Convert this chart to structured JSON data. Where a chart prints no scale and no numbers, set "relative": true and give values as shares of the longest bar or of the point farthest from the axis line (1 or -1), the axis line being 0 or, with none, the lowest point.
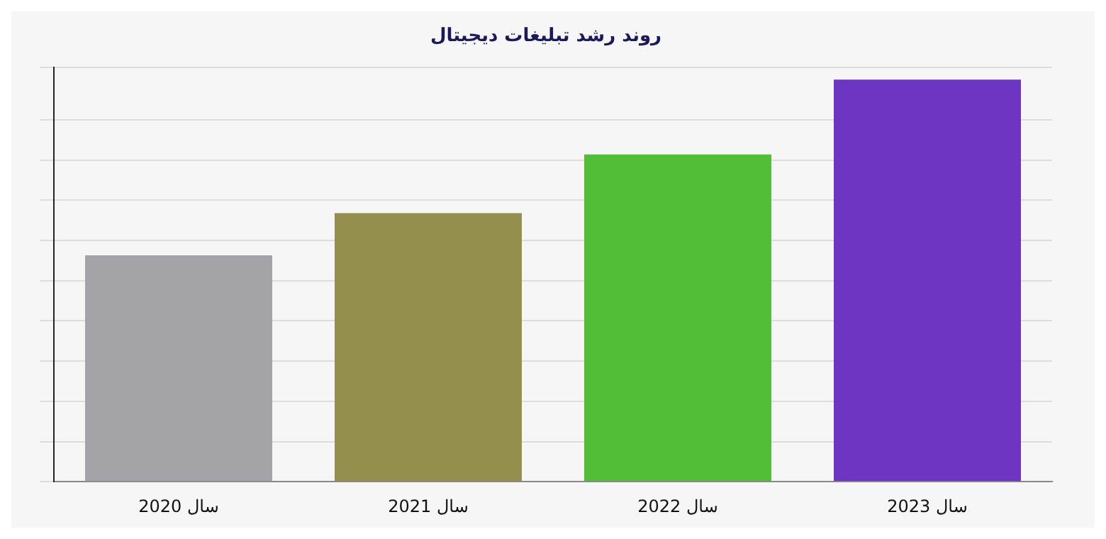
{
  "chart_data": {
    "type": "bar",
    "title": "روند رشد تبلیغات دیجیتال",
    "categories": [
      "سال 2020",
      "سال 2021",
      "سال 2022",
      "سال 2023"
    ],
    "values": [
      0.563,
      0.668,
      0.814,
      1
    ],
    "colors": [
      "#a4a4a8",
      "#958f4e",
      "#52be37",
      "#6b35c2"
    ],
    "relative": true,
    "grid": "y",
    "legend": false
  }
}
